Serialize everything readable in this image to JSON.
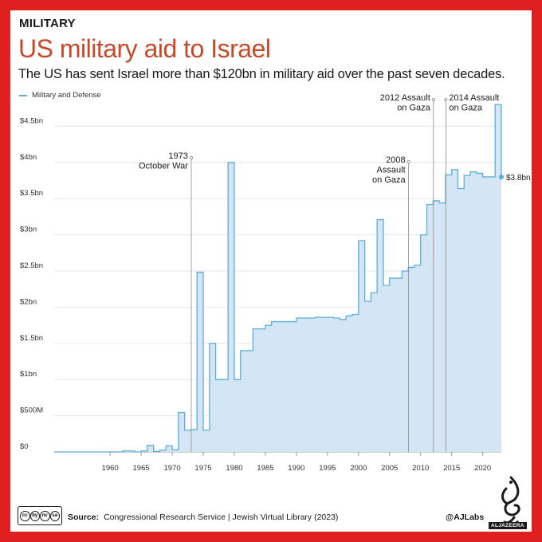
{
  "header": {
    "kicker": "MILITARY",
    "title": "US military aid to Israel",
    "subtitle": "The US has sent Israel more than $120bn in military aid over the past seven decades."
  },
  "legend": {
    "label": "Military and Defense"
  },
  "colors": {
    "fill": "#d4e6f5",
    "line": "#5aaed8",
    "title": "#c8492a",
    "frame": "#e0201f"
  },
  "chart_data": {
    "type": "area",
    "step": true,
    "title": "US military aid to Israel",
    "series": [
      {
        "name": "Military and Defense",
        "x": [
          1951,
          1952,
          1953,
          1954,
          1955,
          1956,
          1957,
          1958,
          1959,
          1960,
          1961,
          1962,
          1963,
          1964,
          1965,
          1966,
          1967,
          1968,
          1969,
          1970,
          1971,
          1972,
          1973,
          1974,
          1975,
          1976,
          1977,
          1978,
          1979,
          1980,
          1981,
          1982,
          1983,
          1984,
          1985,
          1986,
          1987,
          1988,
          1989,
          1990,
          1991,
          1992,
          1993,
          1994,
          1995,
          1996,
          1997,
          1998,
          1999,
          2000,
          2001,
          2002,
          2003,
          2004,
          2005,
          2006,
          2007,
          2008,
          2009,
          2010,
          2011,
          2012,
          2013,
          2014,
          2015,
          2016,
          2017,
          2018,
          2019,
          2020,
          2021,
          2022,
          2023
        ],
        "values": [
          0,
          0,
          0,
          0,
          0,
          0,
          0,
          0,
          0.4,
          0.5,
          0,
          13,
          13,
          0,
          12.9,
          90,
          7,
          25,
          85,
          30,
          545,
          300,
          307.5,
          2482.7,
          300,
          1500,
          1000,
          1000,
          4000,
          1000,
          1400,
          1400,
          1700,
          1700,
          1750,
          1800,
          1800,
          1800,
          1800,
          1850,
          1850,
          1850,
          1860,
          1860,
          1860,
          1850,
          1830,
          1880,
          1900,
          2920,
          2080,
          2200,
          3210,
          2300,
          2400,
          2400,
          2500,
          2550,
          2580,
          3000,
          3420,
          3470,
          3440,
          3830,
          3900,
          3640,
          3820,
          3870,
          3850,
          3800,
          3800,
          4800,
          3800
        ]
      }
    ],
    "xlabel": "",
    "ylabel": "",
    "xticks": [
      1960,
      1965,
      1970,
      1975,
      1980,
      1985,
      1990,
      1995,
      2000,
      2005,
      2010,
      2015,
      2020
    ],
    "xlim": [
      1951,
      2023
    ],
    "ylim": [
      0,
      5000
    ],
    "yticks": [
      {
        "value": 0,
        "label": "$0"
      },
      {
        "value": 500,
        "label": "$500M"
      },
      {
        "value": 1000,
        "label": "$1bn"
      },
      {
        "value": 1500,
        "label": "$1.5bn"
      },
      {
        "value": 2000,
        "label": "$2bn"
      },
      {
        "value": 2500,
        "label": "$2.5bn"
      },
      {
        "value": 3000,
        "label": "$3bn"
      },
      {
        "value": 3500,
        "label": "$3.5bn"
      },
      {
        "value": 4000,
        "label": "$4bn"
      },
      {
        "value": 4500,
        "label": "$4.5bn"
      }
    ],
    "end_label": "$3.8bn",
    "end_value": 3800,
    "annotations": [
      {
        "name": "1973-october-war",
        "year": 1973,
        "lines": [
          "1973",
          "October War"
        ],
        "align": "end"
      },
      {
        "name": "2008-assault",
        "year": 2008,
        "lines": [
          "2008",
          "Assault",
          "on Gaza"
        ],
        "align": "end"
      },
      {
        "name": "2012-assault",
        "year": 2012,
        "lines": [
          "2012 Assault",
          "on Gaza"
        ],
        "align": "end"
      },
      {
        "name": "2014-assault",
        "year": 2014,
        "lines": [
          "2014 Assault",
          "on Gaza"
        ],
        "align": "start"
      }
    ]
  },
  "footer": {
    "cc_badges": [
      "cc",
      "by",
      "nc",
      "sa"
    ],
    "source_label": "Source:",
    "source_text": "Congressional Research Service | Jewish Virtual Library (2023)",
    "handle": "@AJLabs",
    "brand": "ALJAZEERA"
  }
}
